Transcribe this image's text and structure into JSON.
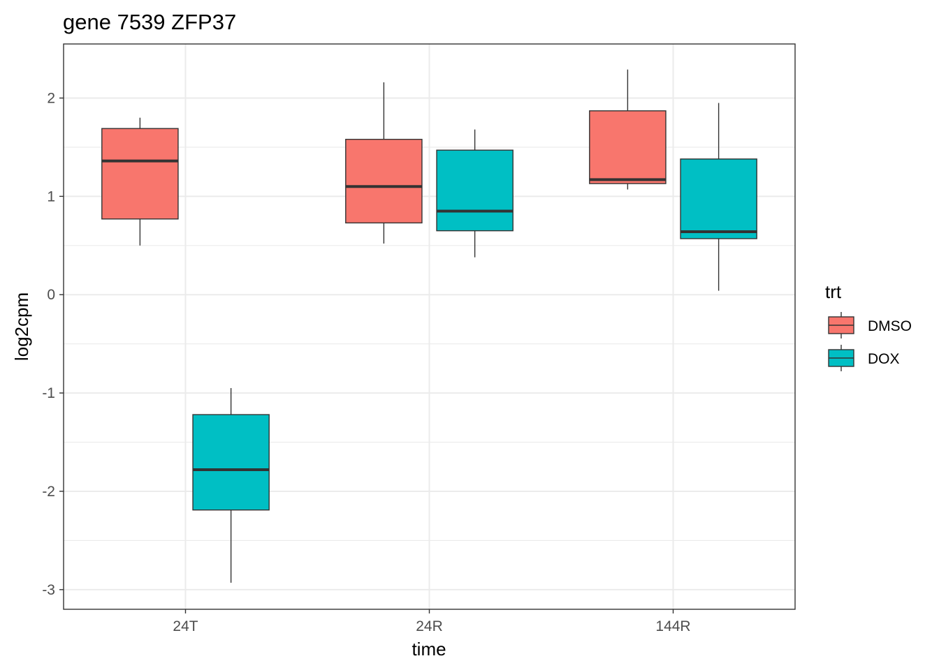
{
  "chart_data": {
    "type": "boxplot",
    "title": "gene 7539 ZFP37",
    "xlabel": "time",
    "ylabel": "log2cpm",
    "categories": [
      "24T",
      "24R",
      "144R"
    ],
    "ylim": [
      -3.2,
      2.55
    ],
    "yticks": [
      -3,
      -2,
      -1,
      0,
      1,
      2
    ],
    "ytick_labels": [
      "-3",
      "-2",
      "-1",
      "0",
      "1",
      "2"
    ],
    "grid": true,
    "legend": {
      "title": "trt",
      "position": "right",
      "entries": [
        {
          "name": "DMSO",
          "color": "#F8766D"
        },
        {
          "name": "DOX",
          "color": "#00BFC4"
        }
      ]
    },
    "series": [
      {
        "name": "DMSO",
        "color": "#F8766D",
        "boxes": [
          {
            "category": "24T",
            "min": 0.5,
            "q1": 0.77,
            "median": 1.36,
            "q3": 1.69,
            "max": 1.8
          },
          {
            "category": "24R",
            "min": 0.52,
            "q1": 0.73,
            "median": 1.1,
            "q3": 1.58,
            "max": 2.16
          },
          {
            "category": "144R",
            "min": 1.07,
            "q1": 1.13,
            "median": 1.17,
            "q3": 1.87,
            "max": 2.29
          }
        ]
      },
      {
        "name": "DOX",
        "color": "#00BFC4",
        "boxes": [
          {
            "category": "24T",
            "min": -2.93,
            "q1": -2.19,
            "median": -1.78,
            "q3": -1.22,
            "max": -0.95
          },
          {
            "category": "24R",
            "min": 0.38,
            "q1": 0.65,
            "median": 0.85,
            "q3": 1.47,
            "max": 1.68
          },
          {
            "category": "144R",
            "min": 0.04,
            "q1": 0.57,
            "median": 0.64,
            "q3": 1.38,
            "max": 1.95
          }
        ]
      }
    ]
  }
}
